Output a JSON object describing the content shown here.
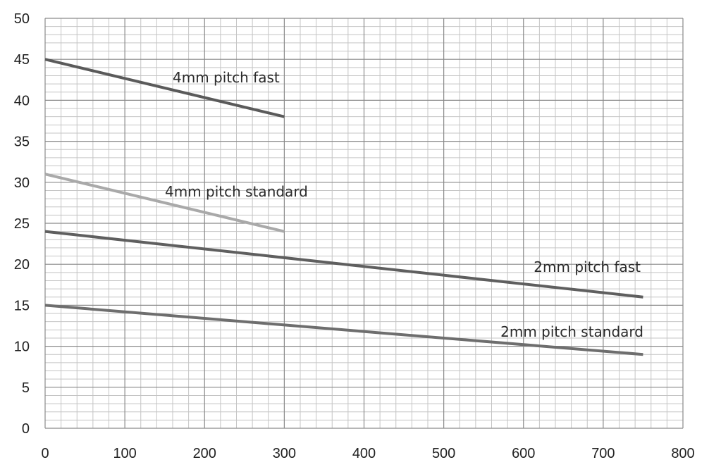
{
  "chart_data": {
    "type": "line",
    "title": "",
    "xlabel": "",
    "ylabel": "",
    "xlim": [
      0,
      800
    ],
    "ylim": [
      0,
      50
    ],
    "x_ticks": [
      0,
      100,
      200,
      300,
      400,
      500,
      600,
      700,
      800
    ],
    "y_ticks": [
      0,
      5,
      10,
      15,
      20,
      25,
      30,
      35,
      40,
      45,
      50
    ],
    "grid": true,
    "legend": "none",
    "series": [
      {
        "name": "4mm pitch fast",
        "color": "#5a5a5a",
        "x": [
          0,
          300
        ],
        "y": [
          45,
          38
        ]
      },
      {
        "name": "4mm pitch standard",
        "color": "#a9a9a9",
        "x": [
          0,
          300
        ],
        "y": [
          31,
          24
        ]
      },
      {
        "name": "2mm pitch fast",
        "color": "#5f5f5f",
        "x": [
          0,
          750
        ],
        "y": [
          24,
          16
        ]
      },
      {
        "name": "2mm pitch standard",
        "color": "#6e6e6e",
        "x": [
          0,
          750
        ],
        "y": [
          15,
          9
        ]
      }
    ]
  }
}
